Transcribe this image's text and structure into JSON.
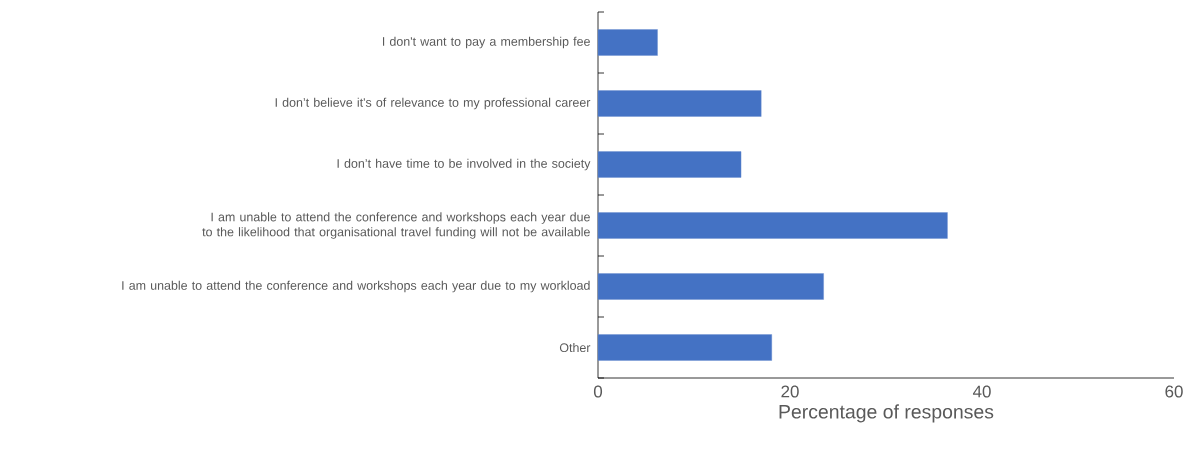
{
  "chart_data": {
    "type": "bar",
    "orientation": "horizontal",
    "categories": [
      "I don't want to pay a membership fee",
      "I don’t believe it's of relevance to my professional career",
      "I don’t have time to be involved in the society",
      "I am unable to attend the conference and workshops each year due to the likelihood that organisational travel funding will not be available",
      "I am unable to attend the conference and workshops each year due to my workload",
      "Other"
    ],
    "values": [
      6.2,
      17.0,
      14.9,
      36.4,
      23.5,
      18.1
    ],
    "color": "#4472c4",
    "xlabel": "Percentage of responses",
    "xlim": [
      0,
      60
    ],
    "xticks": [
      0,
      20,
      40,
      60
    ]
  }
}
